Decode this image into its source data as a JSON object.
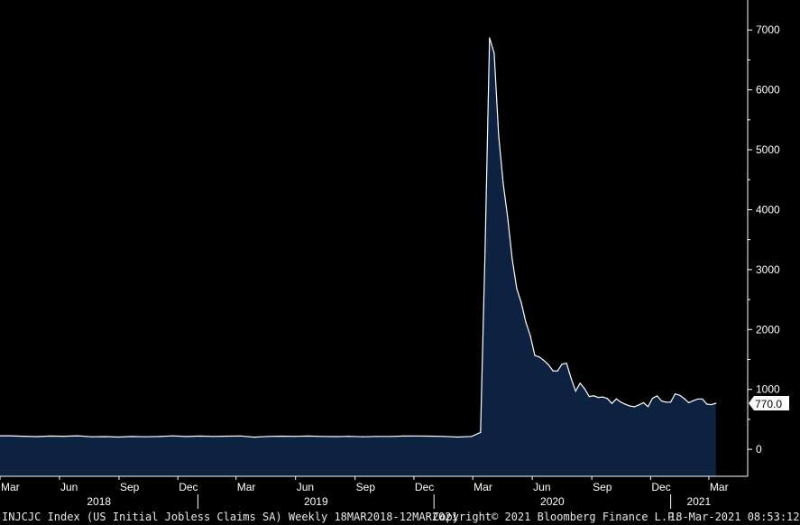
{
  "chart_data": {
    "type": "area",
    "series": [
      {
        "values": [
          {
            "x": "2018-03-16",
            "y": 226
          },
          {
            "x": "2018-04-06",
            "y": 219
          },
          {
            "x": "2018-04-27",
            "y": 213
          },
          {
            "x": "2018-05-18",
            "y": 222
          },
          {
            "x": "2018-06-08",
            "y": 218
          },
          {
            "x": "2018-06-29",
            "y": 226
          },
          {
            "x": "2018-07-20",
            "y": 210
          },
          {
            "x": "2018-08-10",
            "y": 212
          },
          {
            "x": "2018-08-31",
            "y": 205
          },
          {
            "x": "2018-09-21",
            "y": 214
          },
          {
            "x": "2018-10-12",
            "y": 210
          },
          {
            "x": "2018-11-02",
            "y": 214
          },
          {
            "x": "2018-11-23",
            "y": 224
          },
          {
            "x": "2018-12-14",
            "y": 214
          },
          {
            "x": "2019-01-04",
            "y": 221
          },
          {
            "x": "2019-01-25",
            "y": 216
          },
          {
            "x": "2019-02-15",
            "y": 220
          },
          {
            "x": "2019-03-08",
            "y": 223
          },
          {
            "x": "2019-03-29",
            "y": 203
          },
          {
            "x": "2019-04-19",
            "y": 215
          },
          {
            "x": "2019-05-10",
            "y": 220
          },
          {
            "x": "2019-05-31",
            "y": 217
          },
          {
            "x": "2019-06-21",
            "y": 221
          },
          {
            "x": "2019-07-12",
            "y": 215
          },
          {
            "x": "2019-08-02",
            "y": 212
          },
          {
            "x": "2019-08-23",
            "y": 217
          },
          {
            "x": "2019-09-13",
            "y": 210
          },
          {
            "x": "2019-10-04",
            "y": 215
          },
          {
            "x": "2019-10-25",
            "y": 215
          },
          {
            "x": "2019-11-15",
            "y": 221
          },
          {
            "x": "2019-12-06",
            "y": 223
          },
          {
            "x": "2019-12-27",
            "y": 220
          },
          {
            "x": "2020-01-17",
            "y": 215
          },
          {
            "x": "2020-02-07",
            "y": 205
          },
          {
            "x": "2020-02-28",
            "y": 215
          },
          {
            "x": "2020-03-13",
            "y": 282
          },
          {
            "x": "2020-03-20",
            "y": 3307
          },
          {
            "x": "2020-03-27",
            "y": 6867
          },
          {
            "x": "2020-04-03",
            "y": 6615
          },
          {
            "x": "2020-04-10",
            "y": 5237
          },
          {
            "x": "2020-04-17",
            "y": 4442
          },
          {
            "x": "2020-04-24",
            "y": 3867
          },
          {
            "x": "2020-05-01",
            "y": 3176
          },
          {
            "x": "2020-05-08",
            "y": 2687
          },
          {
            "x": "2020-05-15",
            "y": 2446
          },
          {
            "x": "2020-05-22",
            "y": 2123
          },
          {
            "x": "2020-05-29",
            "y": 1897
          },
          {
            "x": "2020-06-05",
            "y": 1566
          },
          {
            "x": "2020-06-12",
            "y": 1540
          },
          {
            "x": "2020-06-19",
            "y": 1482
          },
          {
            "x": "2020-06-26",
            "y": 1413
          },
          {
            "x": "2020-07-03",
            "y": 1310
          },
          {
            "x": "2020-07-10",
            "y": 1307
          },
          {
            "x": "2020-07-17",
            "y": 1422
          },
          {
            "x": "2020-07-24",
            "y": 1435
          },
          {
            "x": "2020-07-31",
            "y": 1186
          },
          {
            "x": "2020-08-07",
            "y": 971
          },
          {
            "x": "2020-08-14",
            "y": 1104
          },
          {
            "x": "2020-08-21",
            "y": 1011
          },
          {
            "x": "2020-08-28",
            "y": 881
          },
          {
            "x": "2020-09-04",
            "y": 893
          },
          {
            "x": "2020-09-11",
            "y": 866
          },
          {
            "x": "2020-09-18",
            "y": 873
          },
          {
            "x": "2020-09-25",
            "y": 849
          },
          {
            "x": "2020-10-02",
            "y": 767
          },
          {
            "x": "2020-10-09",
            "y": 842
          },
          {
            "x": "2020-10-16",
            "y": 787
          },
          {
            "x": "2020-10-23",
            "y": 751
          },
          {
            "x": "2020-10-30",
            "y": 723
          },
          {
            "x": "2020-11-06",
            "y": 711
          },
          {
            "x": "2020-11-13",
            "y": 742
          },
          {
            "x": "2020-11-20",
            "y": 778
          },
          {
            "x": "2020-11-27",
            "y": 712
          },
          {
            "x": "2020-12-04",
            "y": 853
          },
          {
            "x": "2020-12-11",
            "y": 892
          },
          {
            "x": "2020-12-18",
            "y": 806
          },
          {
            "x": "2020-12-25",
            "y": 787
          },
          {
            "x": "2021-01-01",
            "y": 787
          },
          {
            "x": "2021-01-08",
            "y": 926
          },
          {
            "x": "2021-01-15",
            "y": 900
          },
          {
            "x": "2021-01-22",
            "y": 847
          },
          {
            "x": "2021-01-29",
            "y": 779
          },
          {
            "x": "2021-02-05",
            "y": 812
          },
          {
            "x": "2021-02-12",
            "y": 841
          },
          {
            "x": "2021-02-19",
            "y": 841
          },
          {
            "x": "2021-02-26",
            "y": 754
          },
          {
            "x": "2021-03-05",
            "y": 745
          },
          {
            "x": "2021-03-12",
            "y": 770
          }
        ]
      }
    ],
    "xlim": [
      "2018-03-01",
      "2021-03-29"
    ],
    "ylim": [
      -450,
      7500
    ],
    "y_ticks": [
      0,
      1000,
      2000,
      3000,
      4000,
      5000,
      6000,
      7000
    ],
    "y_tick_labels": [
      "0",
      "1000",
      "2000",
      "3000",
      "4000",
      "5000",
      "6000",
      "7000"
    ],
    "x_month_ticks": [
      {
        "date": "2018-03-01",
        "label": "Mar"
      },
      {
        "date": "2018-06-01",
        "label": "Jun"
      },
      {
        "date": "2018-09-01",
        "label": "Sep"
      },
      {
        "date": "2018-12-01",
        "label": "Dec"
      },
      {
        "date": "2019-03-01",
        "label": "Mar"
      },
      {
        "date": "2019-06-01",
        "label": "Jun"
      },
      {
        "date": "2019-09-01",
        "label": "Sep"
      },
      {
        "date": "2019-12-01",
        "label": "Dec"
      },
      {
        "date": "2020-03-01",
        "label": "Mar"
      },
      {
        "date": "2020-06-01",
        "label": "Jun"
      },
      {
        "date": "2020-09-01",
        "label": "Sep"
      },
      {
        "date": "2020-12-01",
        "label": "Dec"
      },
      {
        "date": "2021-03-01",
        "label": "Mar"
      }
    ],
    "x_year_labels": [
      {
        "label": "2018",
        "start": "2018-03-01",
        "end": "2019-01-01"
      },
      {
        "label": "2019",
        "start": "2019-01-01",
        "end": "2020-01-01"
      },
      {
        "label": "2020",
        "start": "2020-01-01",
        "end": "2021-01-01"
      },
      {
        "label": "2021",
        "start": "2021-01-01",
        "end": "2021-03-29"
      }
    ],
    "last_value_label": "770.0",
    "last_value": 770,
    "grid": false,
    "colors": {
      "background": "#000000",
      "area_fill": "#0d2240",
      "line": "#ffffff",
      "text": "#ffffff"
    }
  },
  "footer": {
    "left": "INJCJC Index (US Initial Jobless Claims SA)  Weekly 18MAR2018-12MAR2021",
    "middle": "Copyright© 2021 Bloomberg Finance L.P.",
    "right": "18-Mar-2021 08:53:12"
  }
}
